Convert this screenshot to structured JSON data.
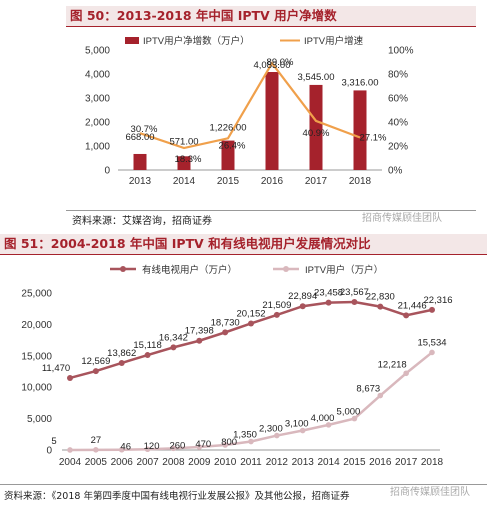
{
  "figure1": {
    "title": "图 50：2013-2018 年中国 IPTV 用户净增数",
    "source": "资料来源：艾媒咨询，招商证券",
    "watermark": "招商传媒顾佳团队"
  },
  "figure2": {
    "title": "图 51：2004-2018 年中国 IPTV 和有线电视用户发展情况对比",
    "source": "资料来源：《2018 年第四季度中国有线电视行业发展公报》及其他公报，招商证券",
    "watermark": "招商传媒顾佳团队"
  },
  "colors": {
    "bar": "#a5222c",
    "growth": "#f0a04b",
    "cable": "#a8545c",
    "iptv": "#d9b8bd"
  },
  "chart_data": [
    {
      "type": "bar",
      "categories": [
        "2013",
        "2014",
        "2015",
        "2016",
        "2017",
        "2018"
      ],
      "series": [
        {
          "name": "IPTV用户净增数（万户）",
          "values": [
            668.0,
            571.0,
            1226.0,
            4083.0,
            3545.0,
            3316.0
          ],
          "labels": [
            "668.00",
            "571.00",
            "1,226.00",
            "4,083.00",
            "3,545.00",
            "3,316.00"
          ]
        },
        {
          "name": "IPTV用户增速",
          "type": "line",
          "values": [
            30.7,
            18.3,
            26.4,
            89.0,
            40.9,
            27.1
          ],
          "labels": [
            "30.7%",
            "18.3%",
            "26.4%",
            "89.0%",
            "40.9%",
            "27.1%"
          ]
        }
      ],
      "ylim": [
        0,
        5000
      ],
      "y2lim": [
        0,
        100
      ],
      "yticks": [
        "0",
        "1,000",
        "2,000",
        "3,000",
        "4,000",
        "5,000"
      ],
      "y2ticks": [
        "0%",
        "20%",
        "40%",
        "60%",
        "80%",
        "100%"
      ],
      "legend": "top"
    },
    {
      "type": "line",
      "categories": [
        "2004",
        "2005",
        "2006",
        "2007",
        "2008",
        "2009",
        "2010",
        "2011",
        "2012",
        "2013",
        "2014",
        "2015",
        "2016",
        "2017",
        "2018"
      ],
      "series": [
        {
          "name": "有线电视用户（万户）",
          "values": [
            11470,
            12569,
            13862,
            15118,
            16342,
            17398,
            18730,
            20152,
            21509,
            22894,
            23458,
            23567,
            22830,
            21446,
            22316
          ],
          "labels": [
            "11,470",
            "12,569",
            "13,862",
            "15,118",
            "16,342",
            "17,398",
            "18,730",
            "20,152",
            "21,509",
            "22,894",
            "23,458",
            "23,567",
            "22,830",
            "21,446",
            "22,316"
          ]
        },
        {
          "name": "IPTV用户（万户）",
          "values": [
            5,
            27,
            46,
            120,
            260,
            470,
            800,
            1350,
            2300,
            3100,
            4000,
            5000,
            8673,
            12218,
            15534
          ],
          "labels": [
            "5",
            "27",
            "46",
            "120",
            "260",
            "470",
            "800",
            "1,350",
            "2,300",
            "3,100",
            "4,000",
            "5,000",
            "8,673",
            "12,218",
            "15,534"
          ]
        }
      ],
      "ylim": [
        0,
        25000
      ],
      "yticks": [
        "0",
        "5,000",
        "10,000",
        "15,000",
        "20,000",
        "25,000"
      ],
      "legend": "top"
    }
  ]
}
